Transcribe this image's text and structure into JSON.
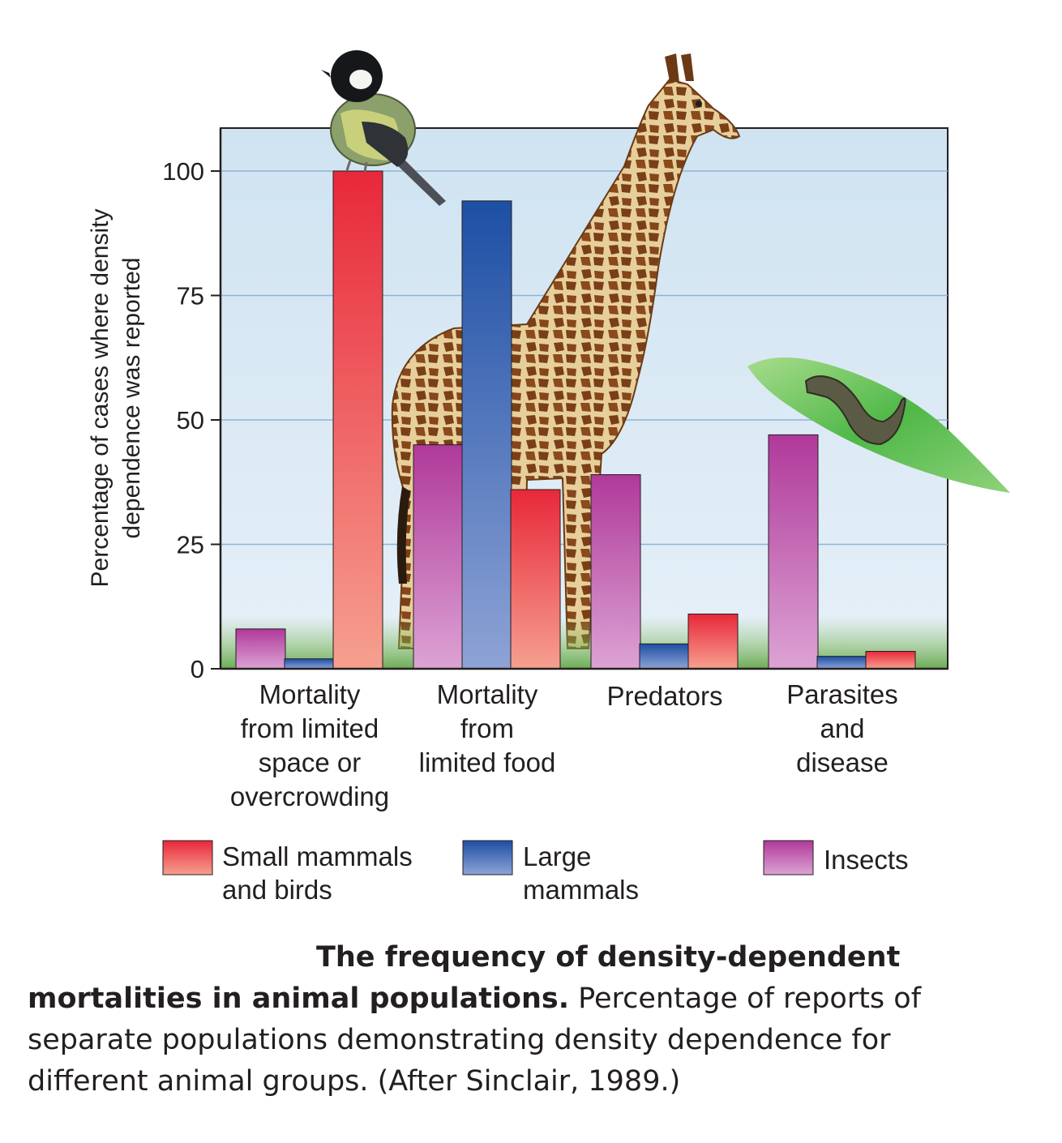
{
  "chart_data": {
    "type": "bar",
    "ylabel": [
      "Percentage of cases where density",
      "dependence was reported"
    ],
    "ylim": [
      0,
      100
    ],
    "yticks": [
      0,
      25,
      50,
      75,
      100
    ],
    "grid": true,
    "categories": [
      [
        "Mortality",
        "from limited",
        "space or",
        "overcrowding"
      ],
      [
        "Mortality",
        "from",
        "limited food"
      ],
      [
        "Predators"
      ],
      [
        "Parasites",
        "and",
        "disease"
      ]
    ],
    "series": [
      {
        "name": "Insects",
        "legend_lines": [
          "Insects"
        ],
        "color_top": "#b0399a",
        "color_bottom": "#dca3d4",
        "values": [
          8,
          45,
          39,
          47
        ]
      },
      {
        "name": "Large mammals",
        "legend_lines": [
          "Large",
          "mammals"
        ],
        "color_top": "#1d4fa4",
        "color_bottom": "#8ea3d6",
        "values": [
          2,
          94,
          5,
          2.5
        ]
      },
      {
        "name": "Small mammals and birds",
        "legend_lines": [
          "Small mammals",
          "and birds"
        ],
        "color_top": "#e8283a",
        "color_bottom": "#f6a08f",
        "values": [
          100,
          36,
          11,
          3.5
        ]
      }
    ],
    "legend_order": [
      2,
      1,
      0
    ]
  },
  "caption": {
    "title": "The frequency of density-dependent mortalities in animal populations.",
    "body": "Percentage of reports of separate populations demonstrating density dependence for different animal groups. (After Sinclair, 1989.)"
  }
}
